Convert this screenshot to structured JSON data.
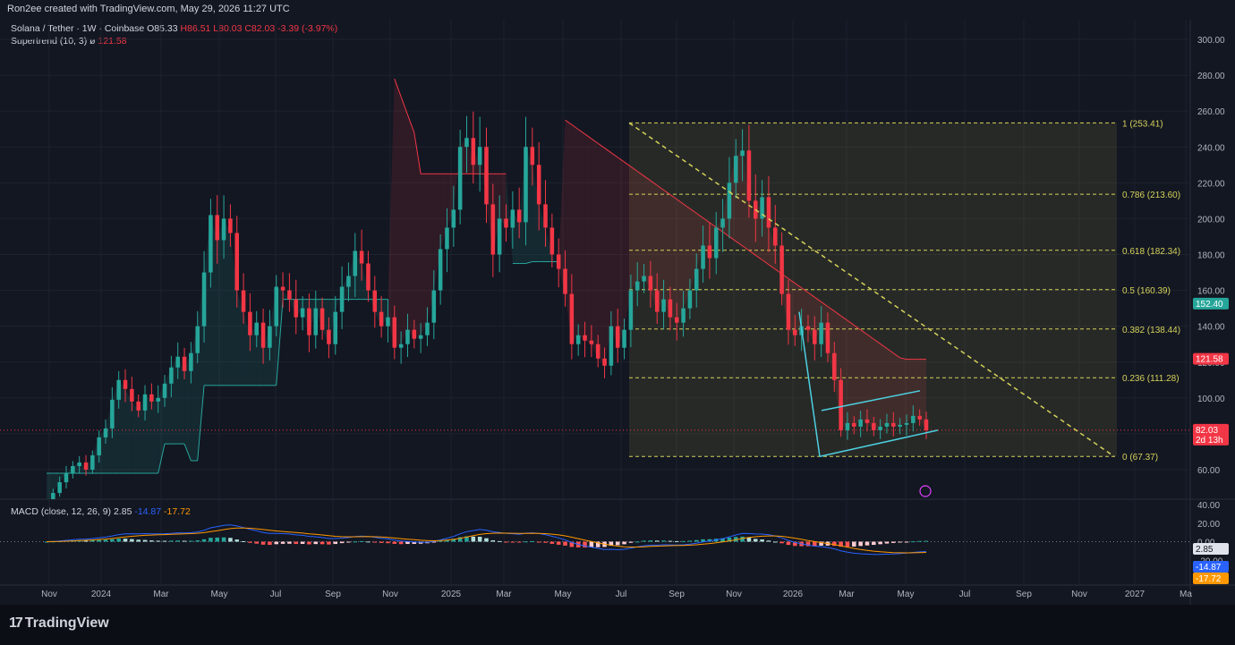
{
  "header": {
    "creator_text": "Ron2ee created with TradingView.com, May 29, 2026 11:27 UTC"
  },
  "legend": {
    "symbol": "Solana / Tether · 1W · Coinbase",
    "open": "O85.33",
    "high": "H86.51",
    "low": "L80.03",
    "close": "C82.03",
    "change": "-3.39 (-3.97%)",
    "supertrend_label": "Supertrend (10, 3)",
    "supertrend_value": "121.58",
    "eye_glyph": "ø"
  },
  "macd_legend": {
    "label": "MACD (close, 12, 26, 9)",
    "hist": "2.85",
    "macd": "-14.87",
    "signal": "-17.72"
  },
  "footer": {
    "logo_glyph": "17",
    "logo_text": "TradingView"
  },
  "colors": {
    "up": "#26a69a",
    "down": "#f23645",
    "fib": "#d6d25a",
    "macd": "#2962ff",
    "signal": "#ff9800",
    "pattern": "#4dd0e1"
  },
  "chart_data": [
    {
      "type": "candlestick",
      "symbol": "Solana / Tether",
      "timeframe": "1W",
      "exchange": "Coinbase",
      "ylim": [
        50,
        310
      ],
      "y_ticks": [
        "300.00",
        "280.00",
        "260.00",
        "240.00",
        "220.00",
        "200.00",
        "180.00",
        "160.00",
        "140.00",
        "120.00",
        "100.00",
        "80.00",
        "60.00"
      ],
      "x_ticks": [
        "Nov",
        "2024",
        "Mar",
        "May",
        "Jul",
        "Sep",
        "Nov",
        "2025",
        "Mar",
        "May",
        "Jul",
        "Sep",
        "Nov",
        "2026",
        "Mar",
        "May",
        "Jul",
        "Sep",
        "Nov",
        "2027",
        "Ma"
      ],
      "price_labels": [
        {
          "value": 152.4,
          "text": "152.40",
          "color": "#26a69a"
        },
        {
          "value": 121.58,
          "text": "121.58",
          "color": "#f23645"
        },
        {
          "value": 82.03,
          "text": "82.03",
          "sub": "2d 13h",
          "color": "#f23645"
        }
      ],
      "fib_levels": [
        {
          "ratio": "1",
          "value": 253.41
        },
        {
          "ratio": "0.786",
          "value": 213.6
        },
        {
          "ratio": "0.618",
          "value": 182.34
        },
        {
          "ratio": "0.5",
          "value": 160.39
        },
        {
          "ratio": "0.382",
          "value": 138.44
        },
        {
          "ratio": "0.236",
          "value": 111.28
        },
        {
          "ratio": "0",
          "value": 67.37
        }
      ],
      "closes": [
        40,
        47,
        53,
        58,
        62,
        64,
        60,
        68,
        78,
        83,
        99,
        110,
        105,
        98,
        93,
        102,
        98,
        100,
        108,
        117,
        123,
        115,
        125,
        140,
        170,
        202,
        188,
        200,
        192,
        160,
        148,
        135,
        142,
        128,
        140,
        162,
        160,
        155,
        145,
        150,
        135,
        150,
        138,
        130,
        148,
        162,
        168,
        182,
        175,
        160,
        148,
        140,
        145,
        128,
        130,
        138,
        133,
        135,
        142,
        160,
        183,
        195,
        205,
        240,
        245,
        230,
        240,
        208,
        180,
        200,
        195,
        205,
        198,
        240,
        230,
        208,
        195,
        180,
        172,
        158,
        130,
        135,
        132,
        130,
        122,
        118,
        140,
        128,
        138,
        160,
        165,
        168,
        160,
        148,
        155,
        145,
        142,
        150,
        160,
        172,
        185,
        178,
        195,
        200,
        220,
        235,
        238,
        210,
        200,
        212,
        195,
        185,
        158,
        138,
        135,
        140,
        138,
        130,
        142,
        125,
        110,
        82,
        86,
        84,
        88,
        86,
        82,
        84,
        86,
        84,
        85,
        86,
        90,
        88,
        82
      ],
      "supertrend": {
        "last_value": 121.58
      },
      "pattern": "falling trendline from 253.41 and bear flag / rising wedge channel after drop to 67.37"
    },
    {
      "type": "histogram+line",
      "name": "MACD (close, 12, 26, 9)",
      "ylim": [
        -40,
        40
      ],
      "y_ticks": [
        "40.00",
        "20.00",
        "0.00",
        "-20.00",
        "-40.00"
      ],
      "price_labels": [
        {
          "text": "2.85",
          "color": "#d1d4dc"
        },
        {
          "text": "-14.87",
          "color": "#2962ff"
        },
        {
          "text": "-17.72",
          "color": "#ff9800"
        }
      ]
    }
  ]
}
